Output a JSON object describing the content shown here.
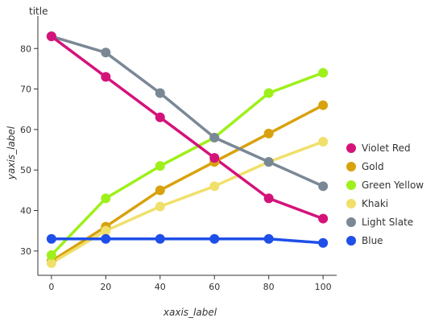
{
  "chart_data": {
    "type": "line",
    "title": "title",
    "xlabel": "xaxis_label",
    "ylabel": "yaxis_label",
    "xlim": [
      -5,
      105
    ],
    "ylim": [
      24,
      88
    ],
    "xticks": [
      0,
      20,
      40,
      60,
      80,
      100
    ],
    "yticks": [
      30,
      40,
      50,
      60,
      70,
      80
    ],
    "x": [
      0,
      20,
      40,
      60,
      80,
      100
    ],
    "grid": false,
    "legend_position": "right",
    "series": [
      {
        "name": "Violet Red",
        "color": "#d4137a",
        "values": [
          83,
          73,
          63,
          53,
          43,
          38
        ]
      },
      {
        "name": "Gold",
        "color": "#d8a20e",
        "values": [
          27.5,
          36,
          45,
          52,
          59,
          66
        ]
      },
      {
        "name": "Green Yellow",
        "color": "#9ef01a",
        "values": [
          29,
          43,
          51,
          58,
          69,
          74
        ]
      },
      {
        "name": "Khaki",
        "color": "#f0e06b",
        "values": [
          27,
          35,
          41,
          46,
          52,
          57
        ]
      },
      {
        "name": "Light Slate",
        "color": "#7a8896",
        "values": [
          83,
          79,
          69,
          58,
          52,
          46
        ]
      },
      {
        "name": "Blue",
        "color": "#1f4fe8",
        "values": [
          33,
          33,
          33,
          33,
          33,
          32
        ]
      }
    ],
    "draw_order": [
      "Gold",
      "Khaki",
      "Green Yellow",
      "Light Slate",
      "Violet Red",
      "Blue"
    ]
  }
}
